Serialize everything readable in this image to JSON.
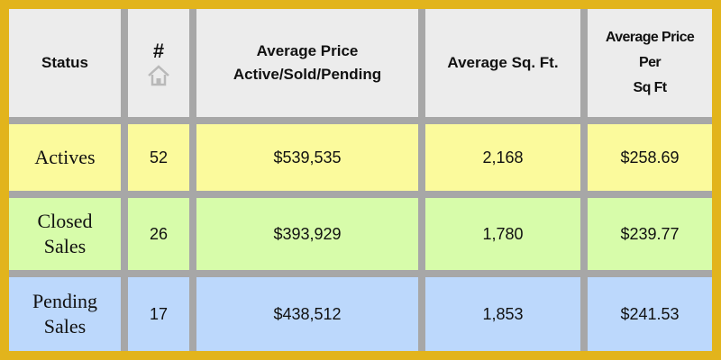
{
  "table": {
    "headers": {
      "status": "Status",
      "count": "#",
      "avg_price": [
        "Average Price",
        "Active/Sold/Pending"
      ],
      "avg_sqft": "Average Sq. Ft.",
      "avg_price_per_sqft": [
        "Average Price",
        "Per",
        "Sq Ft"
      ]
    },
    "header_icon": "home-icon",
    "rows": [
      {
        "status": [
          "Actives"
        ],
        "count": "52",
        "avg_price": "$539,535",
        "avg_sqft": "2,168",
        "price_per_sqft": "$258.69"
      },
      {
        "status": [
          "Closed",
          "Sales"
        ],
        "count": "26",
        "avg_price": "$393,929",
        "avg_sqft": "1,780",
        "price_per_sqft": "$239.77"
      },
      {
        "status": [
          "Pending",
          "Sales"
        ],
        "count": "17",
        "avg_price": "$438,512",
        "avg_sqft": "1,853",
        "price_per_sqft": "$241.53"
      }
    ],
    "colors": {
      "border": "#e2b41c",
      "header_bg": "#ececec",
      "actives_bg": "#fbfa9c",
      "closed_bg": "#d7fcaa",
      "pending_bg": "#bcd8fc",
      "grid": "#a7a7a7"
    }
  }
}
